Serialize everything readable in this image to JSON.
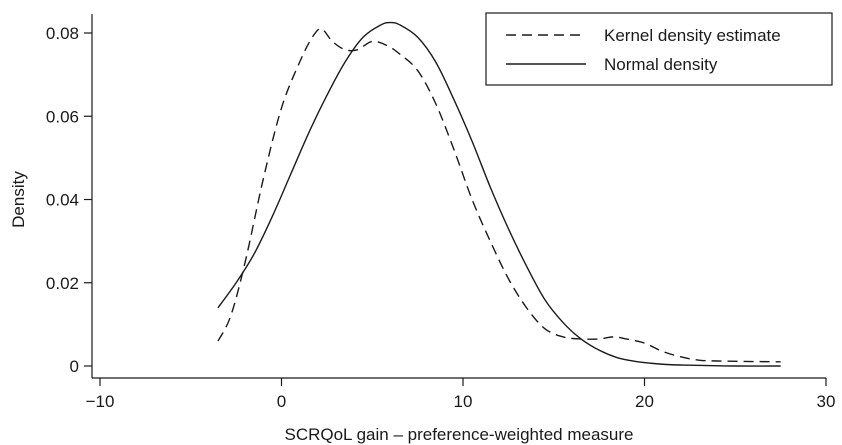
{
  "chart_data": {
    "type": "line",
    "title": "",
    "xlabel": "SCRQoL gain – preference-weighted measure",
    "ylabel": "Density",
    "xlim": [
      -10,
      30
    ],
    "ylim": [
      0,
      0.085
    ],
    "grid": false,
    "legend_position": "top-right",
    "x_ticks": [
      -10,
      0,
      10,
      20,
      30
    ],
    "x_tick_labels": [
      "−10",
      "0",
      "10",
      "20",
      "30"
    ],
    "y_ticks": [
      0,
      0.02,
      0.04,
      0.06,
      0.08
    ],
    "y_tick_labels": [
      "0",
      "0.02",
      "0.04",
      "0.06",
      "0.08"
    ],
    "series": [
      {
        "name": "Kernel density estimate",
        "style": "dashed",
        "x": [
          -3.5,
          -2.8,
          -2.0,
          -1.0,
          0.0,
          1.0,
          1.7,
          2.2,
          2.8,
          3.5,
          4.2,
          5.0,
          5.8,
          6.5,
          7.5,
          8.5,
          9.5,
          10.5,
          11.5,
          12.5,
          13.5,
          14.5,
          15.5,
          16.5,
          17.5,
          18.3,
          19.0,
          20.0,
          21.0,
          22.0,
          23.0,
          24.0,
          25.5,
          27.5
        ],
        "y": [
          0.006,
          0.012,
          0.025,
          0.045,
          0.062,
          0.073,
          0.079,
          0.081,
          0.078,
          0.076,
          0.076,
          0.078,
          0.077,
          0.075,
          0.071,
          0.063,
          0.052,
          0.04,
          0.03,
          0.021,
          0.014,
          0.009,
          0.007,
          0.0065,
          0.0065,
          0.007,
          0.0065,
          0.0055,
          0.0035,
          0.0022,
          0.0014,
          0.0012,
          0.0011,
          0.001
        ]
      },
      {
        "name": "Normal density",
        "style": "solid",
        "x": [
          -3.5,
          -2.5,
          -1.5,
          -0.5,
          0.5,
          1.5,
          2.5,
          3.5,
          4.5,
          5.5,
          6.0,
          6.5,
          7.5,
          8.5,
          9.5,
          10.5,
          11.5,
          12.5,
          13.5,
          14.5,
          15.5,
          16.5,
          17.5,
          18.5,
          19.5,
          20.5,
          21.5,
          22.5,
          23.5,
          25.0,
          27.5
        ],
        "y": [
          0.014,
          0.02,
          0.027,
          0.036,
          0.046,
          0.056,
          0.065,
          0.073,
          0.079,
          0.082,
          0.0825,
          0.082,
          0.079,
          0.073,
          0.064,
          0.054,
          0.043,
          0.033,
          0.024,
          0.016,
          0.0105,
          0.0065,
          0.0038,
          0.002,
          0.0011,
          0.0006,
          0.0003,
          0.0002,
          0.0001,
          0.0,
          0.0
        ]
      }
    ]
  }
}
